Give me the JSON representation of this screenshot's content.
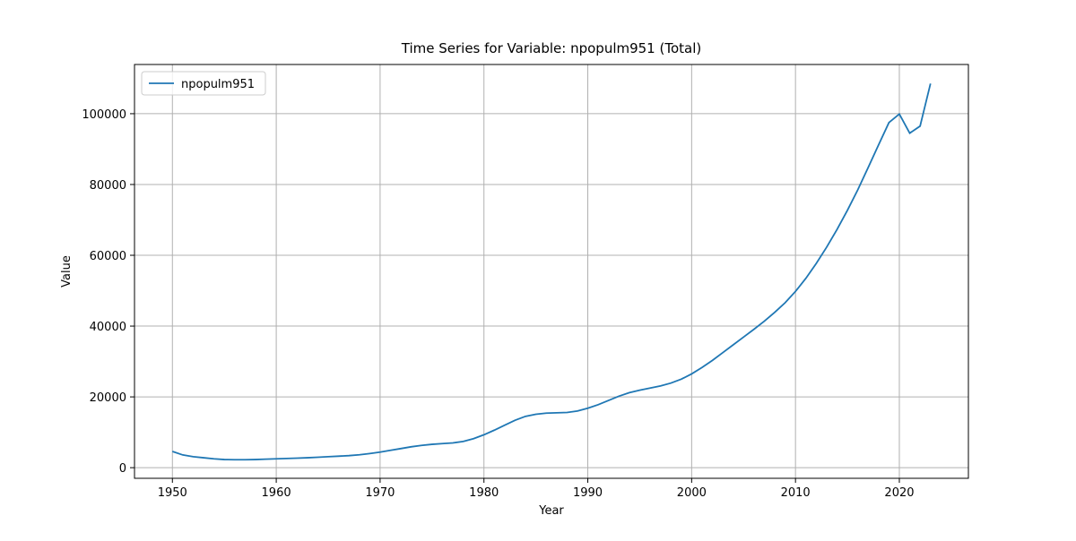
{
  "chart_data": {
    "type": "line",
    "title": "Time Series for Variable: npopulm951 (Total)",
    "x_label": "Year",
    "y_label": "Value",
    "x": [
      1950,
      1951,
      1952,
      1953,
      1954,
      1955,
      1956,
      1957,
      1958,
      1959,
      1960,
      1961,
      1962,
      1963,
      1964,
      1965,
      1966,
      1967,
      1968,
      1969,
      1970,
      1971,
      1972,
      1973,
      1974,
      1975,
      1976,
      1977,
      1978,
      1979,
      1980,
      1981,
      1982,
      1983,
      1984,
      1985,
      1986,
      1987,
      1988,
      1989,
      1990,
      1991,
      1992,
      1993,
      1994,
      1995,
      1996,
      1997,
      1998,
      1999,
      2000,
      2001,
      2002,
      2003,
      2004,
      2005,
      2006,
      2007,
      2008,
      2009,
      2010,
      2011,
      2012,
      2013,
      2014,
      2015,
      2016,
      2017,
      2018,
      2019,
      2020,
      2021,
      2022,
      2023
    ],
    "series": [
      {
        "name": "npopulm951",
        "color": "#1f77b4",
        "values": [
          4600,
          3600,
          3100,
          2800,
          2500,
          2300,
          2250,
          2250,
          2300,
          2400,
          2500,
          2600,
          2700,
          2800,
          2950,
          3100,
          3250,
          3400,
          3650,
          4000,
          4400,
          4900,
          5400,
          5900,
          6300,
          6600,
          6800,
          7000,
          7400,
          8200,
          9300,
          10600,
          12000,
          13400,
          14500,
          15100,
          15400,
          15500,
          15600,
          16000,
          16800,
          17800,
          19000,
          20200,
          21200,
          21900,
          22500,
          23100,
          23900,
          25000,
          26500,
          28300,
          30300,
          32500,
          34700,
          36900,
          39100,
          41400,
          43900,
          46600,
          49800,
          53500,
          57700,
          62300,
          67300,
          72700,
          78500,
          84800,
          91200,
          97500,
          99900,
          94500,
          96500,
          108500
        ]
      }
    ],
    "xlim": [
      1946.35,
      2026.65
    ],
    "ylim": [
      -3000,
      113900
    ],
    "xticks": [
      1950,
      1960,
      1970,
      1980,
      1990,
      2000,
      2010,
      2020
    ],
    "yticks": [
      0,
      20000,
      40000,
      60000,
      80000,
      100000
    ],
    "grid": true,
    "legend": "upper-left"
  }
}
